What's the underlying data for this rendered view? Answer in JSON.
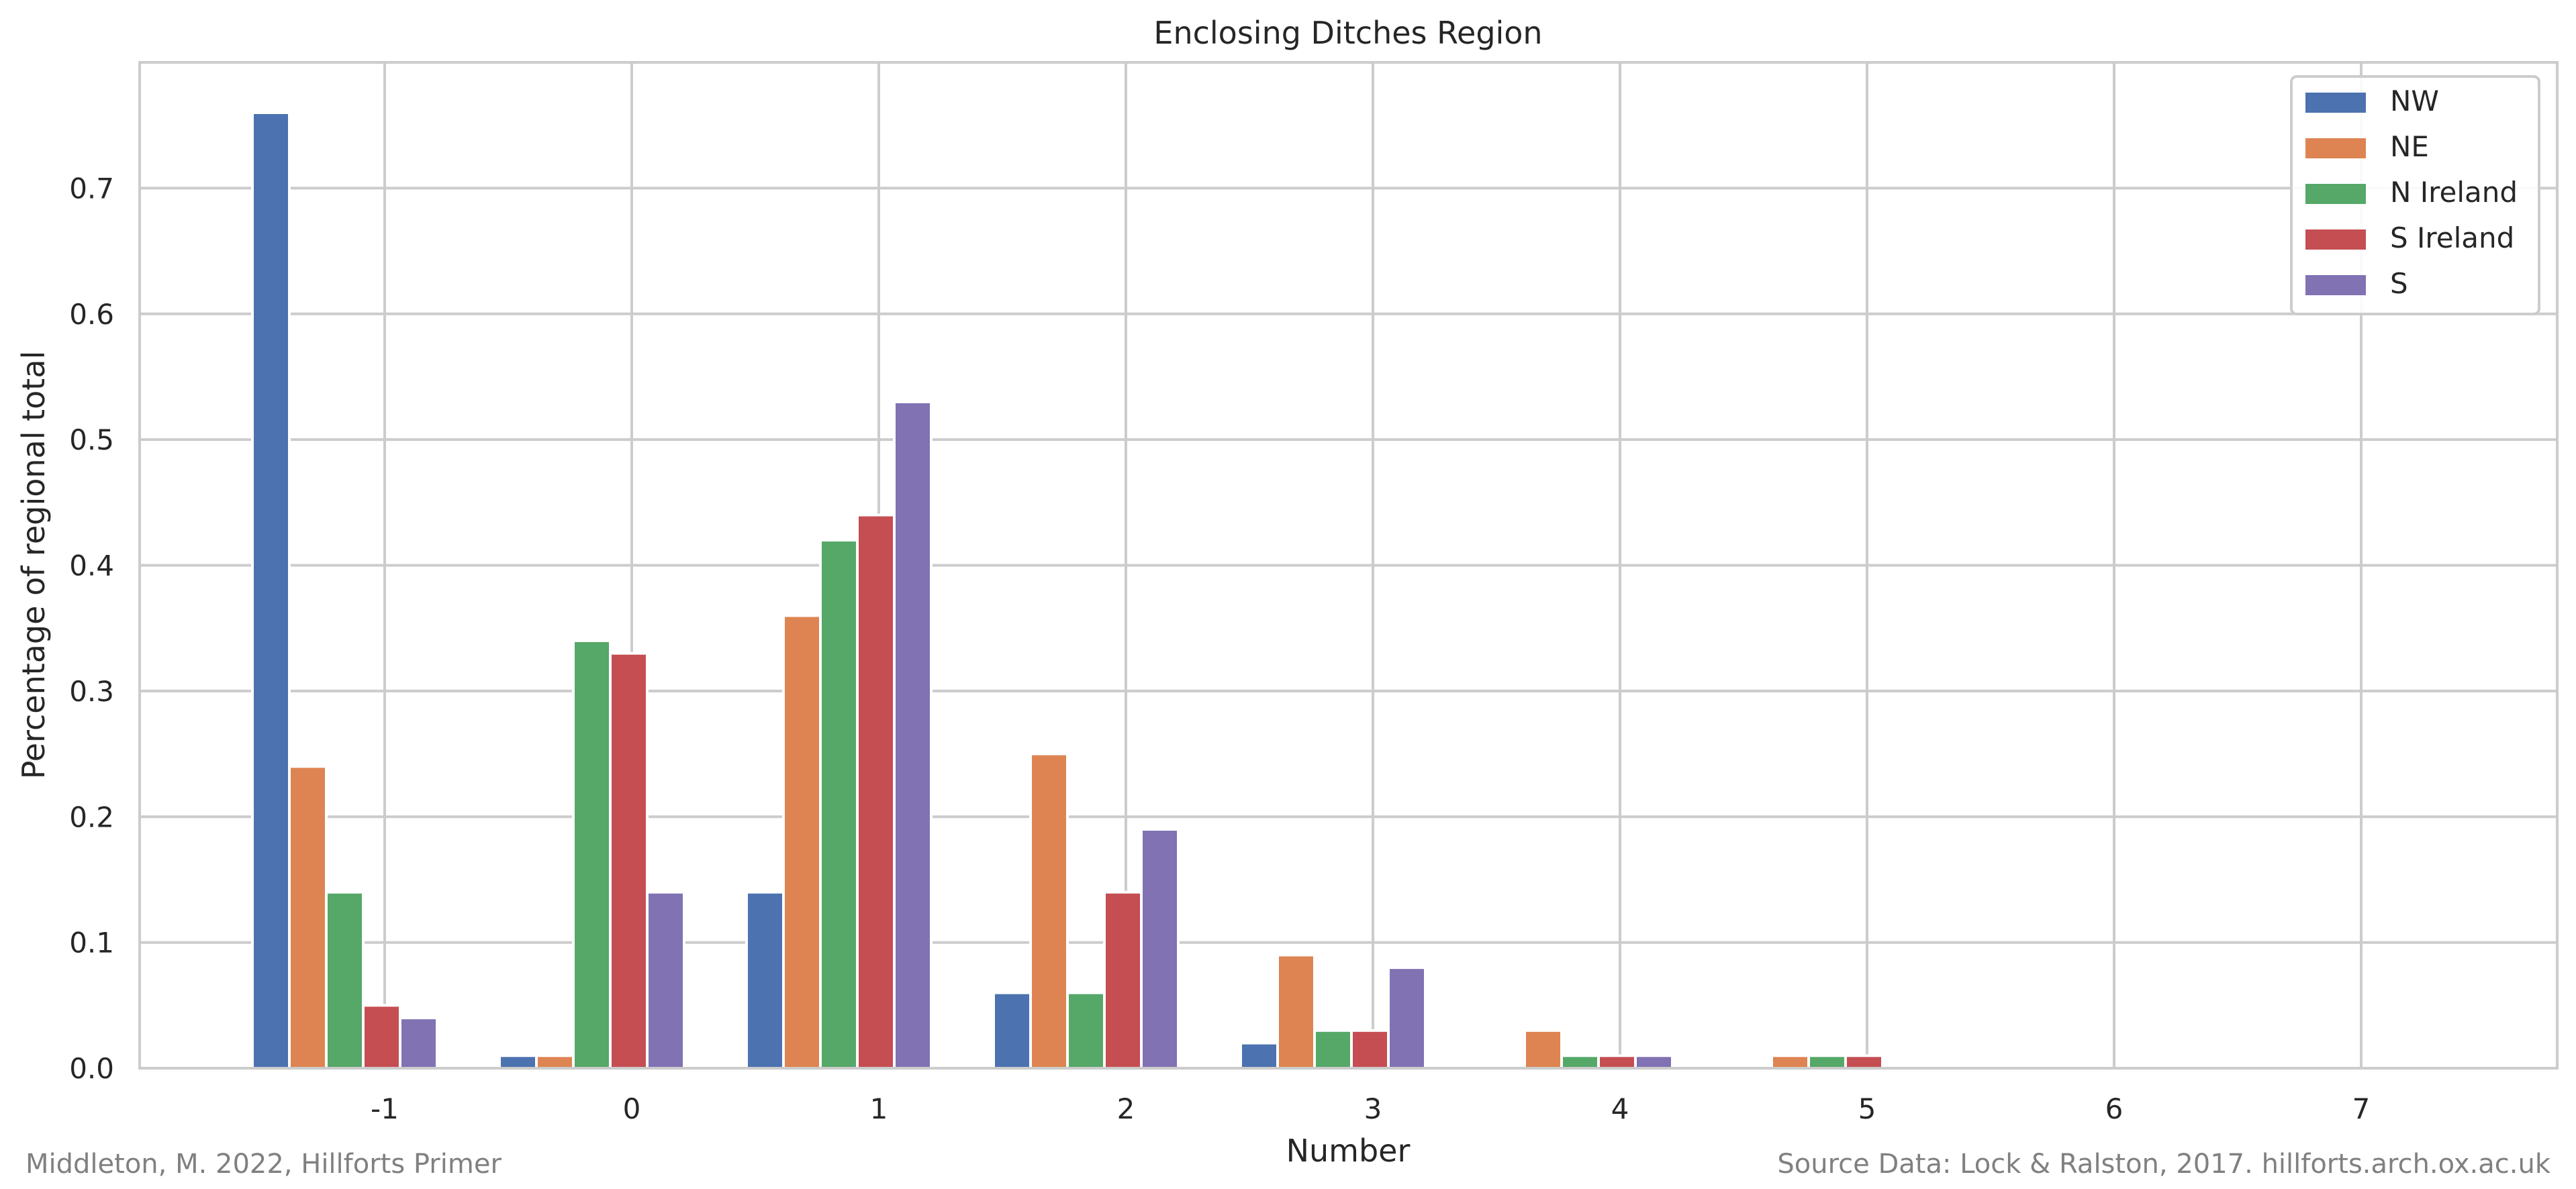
{
  "chart_data": {
    "type": "bar",
    "title": "Enclosing Ditches Region",
    "xlabel": "Number",
    "ylabel": "Percentage of regional total",
    "categories": [
      "-1",
      "0",
      "1",
      "2",
      "3",
      "4",
      "5",
      "6",
      "7"
    ],
    "series": [
      {
        "name": "NW",
        "color": "#4c72b0",
        "values": [
          0.76,
          0.01,
          0.14,
          0.06,
          0.02,
          0,
          0,
          0,
          0
        ]
      },
      {
        "name": "NE",
        "color": "#dd8452",
        "values": [
          0.24,
          0.01,
          0.36,
          0.25,
          0.09,
          0.03,
          0.01,
          0,
          0
        ]
      },
      {
        "name": "N Ireland",
        "color": "#55a868",
        "values": [
          0.14,
          0.34,
          0.42,
          0.06,
          0.03,
          0.01,
          0.01,
          0,
          0
        ]
      },
      {
        "name": "S Ireland",
        "color": "#c44e52",
        "values": [
          0.05,
          0.33,
          0.44,
          0.14,
          0.03,
          0.01,
          0.01,
          0,
          0
        ]
      },
      {
        "name": "S",
        "color": "#8172b3",
        "values": [
          0.04,
          0.14,
          0.53,
          0.19,
          0.08,
          0.01,
          0,
          0,
          0
        ]
      }
    ],
    "yticks": [
      "0.0",
      "0.1",
      "0.2",
      "0.3",
      "0.4",
      "0.5",
      "0.6",
      "0.7"
    ],
    "ylim": [
      0,
      0.8
    ],
    "grid": true,
    "legend_position": "top-right"
  },
  "footer": {
    "left": "Middleton, M. 2022, Hillforts Primer",
    "right": "Source Data: Lock & Ralston, 2017. hillforts.arch.ox.ac.uk"
  }
}
